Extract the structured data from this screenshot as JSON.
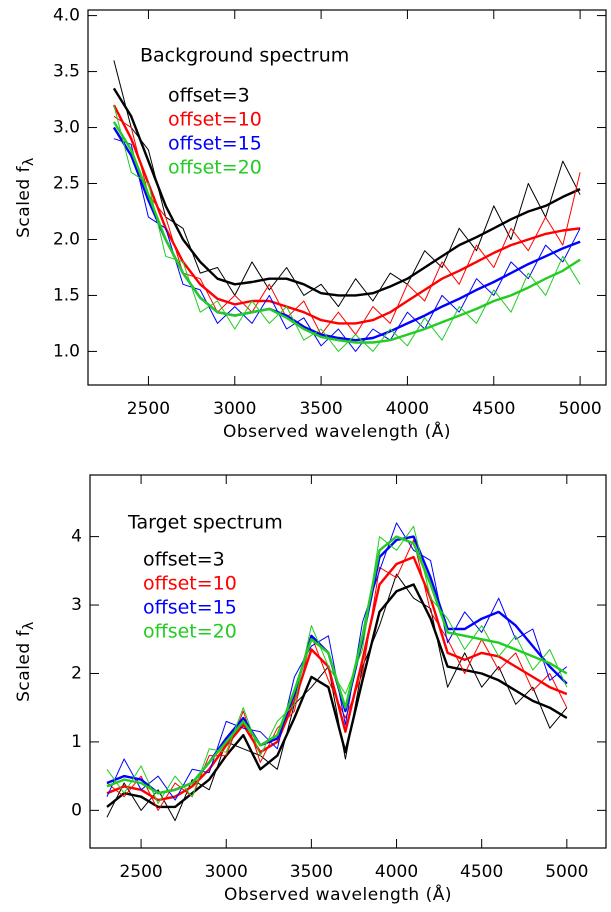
{
  "chart_data": [
    {
      "type": "line",
      "title": "Background spectrum",
      "xlabel": "Observed wavelength (Å)",
      "ylabel": "Scaled f",
      "ylabel_sub": "λ",
      "x": [
        2300,
        2400,
        2500,
        2600,
        2700,
        2800,
        2900,
        3000,
        3100,
        3200,
        3300,
        3400,
        3500,
        3600,
        3700,
        3800,
        3900,
        4000,
        4100,
        4200,
        4300,
        4400,
        4500,
        4600,
        4700,
        4800,
        4900,
        5000
      ],
      "xlim": [
        2150,
        5150
      ],
      "xticks": [
        2500,
        3000,
        3500,
        4000,
        4500,
        5000
      ],
      "ylim": [
        0.7,
        4.05
      ],
      "yticks": [
        {
          "value": 1,
          "label": "1.0"
        },
        1.5,
        {
          "value": 2,
          "label": "2.0"
        },
        2.5,
        {
          "value": 3,
          "label": "3.0"
        },
        3.5,
        {
          "value": 4,
          "label": "4.0"
        }
      ],
      "legend": "top-left",
      "series": [
        {
          "name": "offset=3",
          "color": "#000000",
          "values": [
            3.6,
            3.0,
            2.8,
            2.2,
            2.1,
            1.7,
            1.75,
            1.5,
            1.8,
            1.55,
            1.75,
            1.5,
            1.6,
            1.4,
            1.65,
            1.45,
            1.7,
            1.6,
            1.9,
            1.75,
            2.1,
            1.9,
            2.3,
            2.0,
            2.5,
            2.2,
            2.7,
            2.4
          ],
          "smooth_values": [
            3.35,
            3.1,
            2.7,
            2.3,
            2.0,
            1.8,
            1.65,
            1.6,
            1.62,
            1.65,
            1.65,
            1.6,
            1.52,
            1.5,
            1.5,
            1.52,
            1.58,
            1.65,
            1.75,
            1.85,
            1.95,
            2.02,
            2.1,
            2.18,
            2.25,
            2.3,
            2.38,
            2.45
          ]
        },
        {
          "name": "offset=10",
          "color": "#ff0000",
          "values": [
            3.1,
            3.0,
            2.4,
            2.2,
            1.7,
            1.65,
            1.35,
            1.5,
            1.35,
            1.6,
            1.3,
            1.45,
            1.15,
            1.35,
            1.15,
            1.4,
            1.25,
            1.6,
            1.45,
            1.8,
            1.6,
            1.95,
            1.75,
            2.1,
            1.9,
            2.2,
            1.95,
            2.6
          ],
          "smooth_values": [
            3.2,
            2.9,
            2.5,
            2.1,
            1.8,
            1.6,
            1.47,
            1.42,
            1.45,
            1.45,
            1.4,
            1.35,
            1.28,
            1.25,
            1.25,
            1.28,
            1.35,
            1.45,
            1.55,
            1.65,
            1.72,
            1.8,
            1.88,
            1.95,
            2.0,
            2.05,
            2.08,
            2.1
          ]
        },
        {
          "name": "offset=15",
          "color": "#0000ff",
          "values": [
            2.9,
            2.85,
            2.2,
            2.1,
            1.6,
            1.55,
            1.25,
            1.4,
            1.25,
            1.5,
            1.2,
            1.3,
            1.05,
            1.2,
            1.0,
            1.2,
            1.1,
            1.35,
            1.2,
            1.5,
            1.35,
            1.65,
            1.5,
            1.8,
            1.65,
            1.95,
            1.8,
            2.1
          ],
          "smooth_values": [
            3.0,
            2.75,
            2.35,
            2.0,
            1.7,
            1.48,
            1.35,
            1.32,
            1.35,
            1.38,
            1.32,
            1.22,
            1.15,
            1.12,
            1.1,
            1.12,
            1.18,
            1.25,
            1.32,
            1.4,
            1.47,
            1.55,
            1.62,
            1.7,
            1.78,
            1.85,
            1.92,
            1.98
          ]
        },
        {
          "name": "offset=20",
          "color": "#22cc22",
          "values": [
            3.2,
            2.6,
            2.5,
            1.85,
            1.8,
            1.35,
            1.45,
            1.2,
            1.45,
            1.25,
            1.4,
            1.1,
            1.2,
            1.0,
            1.15,
            1.0,
            1.2,
            1.05,
            1.3,
            1.1,
            1.4,
            1.25,
            1.55,
            1.35,
            1.7,
            1.5,
            1.85,
            1.6
          ],
          "smooth_values": [
            3.05,
            2.8,
            2.4,
            2.0,
            1.7,
            1.48,
            1.35,
            1.32,
            1.35,
            1.38,
            1.3,
            1.2,
            1.13,
            1.1,
            1.08,
            1.08,
            1.1,
            1.15,
            1.2,
            1.26,
            1.32,
            1.38,
            1.45,
            1.5,
            1.57,
            1.65,
            1.72,
            1.82
          ]
        }
      ]
    },
    {
      "type": "line",
      "title": "Target spectrum",
      "xlabel": "Observed wavelength (Å)",
      "ylabel": "Scaled f",
      "ylabel_sub": "λ",
      "x": [
        2300,
        2400,
        2500,
        2600,
        2700,
        2800,
        2900,
        3000,
        3100,
        3200,
        3300,
        3400,
        3500,
        3600,
        3700,
        3800,
        3900,
        4000,
        4100,
        4200,
        4300,
        4400,
        4500,
        4600,
        4700,
        4800,
        4900,
        5000
      ],
      "xlim": [
        2200,
        5230
      ],
      "xticks": [
        2500,
        3000,
        3500,
        4000,
        4500,
        5000
      ],
      "ylim": [
        -0.55,
        4.9
      ],
      "yticks": [
        0,
        1,
        2,
        3,
        4
      ],
      "legend": "top-left",
      "series": [
        {
          "name": "offset=3",
          "color": "#000000",
          "values": [
            -0.1,
            0.4,
            0.0,
            0.3,
            -0.15,
            0.45,
            0.3,
            1.0,
            0.9,
            0.8,
            0.6,
            1.55,
            1.8,
            2.1,
            0.75,
            2.1,
            2.7,
            3.45,
            3.1,
            2.95,
            1.8,
            2.3,
            1.8,
            2.1,
            1.55,
            1.8,
            1.2,
            1.5
          ],
          "smooth_values": [
            0.05,
            0.25,
            0.2,
            0.05,
            0.05,
            0.25,
            0.45,
            0.8,
            1.1,
            0.6,
            0.8,
            1.35,
            1.95,
            1.8,
            0.85,
            1.9,
            2.9,
            3.2,
            3.3,
            2.8,
            2.1,
            2.05,
            2.0,
            1.9,
            1.75,
            1.6,
            1.5,
            1.35
          ]
        },
        {
          "name": "offset=10",
          "color": "#ff0000",
          "values": [
            0.4,
            0.2,
            0.5,
            0.0,
            0.4,
            0.2,
            0.8,
            0.8,
            1.45,
            0.7,
            1.2,
            1.45,
            2.55,
            1.9,
            1.35,
            2.0,
            3.55,
            3.4,
            3.95,
            2.9,
            2.5,
            2.0,
            2.5,
            2.05,
            2.3,
            1.75,
            2.0,
            1.5
          ],
          "smooth_values": [
            0.25,
            0.35,
            0.3,
            0.15,
            0.2,
            0.35,
            0.6,
            0.95,
            1.25,
            0.85,
            1.0,
            1.6,
            2.35,
            2.1,
            1.15,
            2.2,
            3.3,
            3.6,
            3.7,
            3.1,
            2.3,
            2.2,
            2.3,
            2.25,
            2.1,
            1.95,
            1.8,
            1.7
          ]
        },
        {
          "name": "offset=15",
          "color": "#0000ff",
          "values": [
            0.2,
            0.75,
            0.3,
            0.5,
            0.15,
            0.6,
            0.55,
            1.3,
            1.2,
            1.15,
            0.9,
            1.95,
            2.4,
            2.55,
            1.25,
            2.75,
            3.5,
            4.2,
            3.8,
            3.65,
            2.45,
            2.9,
            2.6,
            3.1,
            2.5,
            2.65,
            1.9,
            2.1
          ],
          "smooth_values": [
            0.4,
            0.5,
            0.45,
            0.25,
            0.3,
            0.4,
            0.7,
            1.05,
            1.35,
            0.95,
            1.05,
            1.7,
            2.55,
            2.3,
            1.45,
            2.5,
            3.7,
            3.95,
            4.0,
            3.4,
            2.65,
            2.65,
            2.8,
            2.9,
            2.7,
            2.4,
            2.1,
            1.85
          ]
        },
        {
          "name": "offset=20",
          "color": "#22cc22",
          "values": [
            0.6,
            0.25,
            0.65,
            0.1,
            0.5,
            0.2,
            0.9,
            0.85,
            1.5,
            0.8,
            1.3,
            1.55,
            2.7,
            2.1,
            1.7,
            2.35,
            4.0,
            3.8,
            4.15,
            3.1,
            2.8,
            2.35,
            2.7,
            2.25,
            2.55,
            2.05,
            2.35,
            1.8
          ],
          "smooth_values": [
            0.35,
            0.45,
            0.4,
            0.25,
            0.3,
            0.4,
            0.7,
            1.0,
            1.3,
            0.95,
            1.1,
            1.75,
            2.5,
            2.3,
            1.5,
            2.55,
            3.8,
            4.0,
            3.9,
            3.3,
            2.6,
            2.55,
            2.5,
            2.45,
            2.35,
            2.25,
            2.15,
            2.0
          ]
        }
      ]
    }
  ]
}
